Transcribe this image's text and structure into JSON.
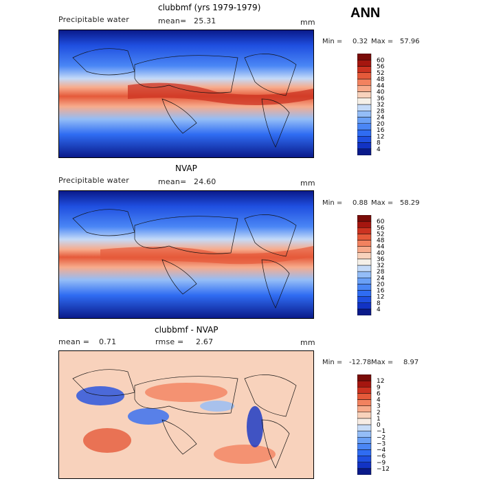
{
  "season": "ANN",
  "chart_data": [
    {
      "type": "heatmap",
      "title": "clubbmf (yrs 1979-1979)",
      "variable": "Precipitable water",
      "mean_label": "mean=",
      "mean": "25.31",
      "units": "mm",
      "min_label": "Min =",
      "min": "0.32",
      "max_label": "Max =",
      "max": "57.96",
      "colorbar": {
        "levels": [
          "4",
          "8",
          "12",
          "16",
          "20",
          "24",
          "28",
          "32",
          "36",
          "40",
          "44",
          "48",
          "52",
          "56",
          "60"
        ],
        "colors": [
          "#0a1a8a",
          "#1233c4",
          "#1f4fe0",
          "#2f6cf2",
          "#4a86f5",
          "#6aa0f6",
          "#94bdf7",
          "#c4daf8",
          "#f5f0e8",
          "#f8d2bc",
          "#f7ab8c",
          "#f2825f",
          "#e55a3a",
          "#cc3321",
          "#a5160f",
          "#7a0c08"
        ]
      }
    },
    {
      "type": "heatmap",
      "title": "NVAP",
      "variable": "Precipitable water",
      "mean_label": "mean=",
      "mean": "24.60",
      "units": "mm",
      "min_label": "Min =",
      "min": "0.88",
      "max_label": "Max =",
      "max": "58.29",
      "colorbar": {
        "levels": [
          "4",
          "8",
          "12",
          "16",
          "20",
          "24",
          "28",
          "32",
          "36",
          "40",
          "44",
          "48",
          "52",
          "56",
          "60"
        ],
        "colors": [
          "#0a1a8a",
          "#1233c4",
          "#1f4fe0",
          "#2f6cf2",
          "#4a86f5",
          "#6aa0f6",
          "#94bdf7",
          "#c4daf8",
          "#f5f0e8",
          "#f8d2bc",
          "#f7ab8c",
          "#f2825f",
          "#e55a3a",
          "#cc3321",
          "#a5160f",
          "#7a0c08"
        ]
      }
    },
    {
      "type": "heatmap",
      "title": "clubbmf - NVAP",
      "mean_label": "mean =",
      "mean": "0.71",
      "rmse_label": "rmse =",
      "rmse": "2.67",
      "units": "mm",
      "min_label": "Min =",
      "min": "-12.78",
      "max_label": "Max =",
      "max": "8.97",
      "colorbar": {
        "levels": [
          "−12",
          "−9",
          "−6",
          "−4",
          "−3",
          "−2",
          "−1",
          "0",
          "1",
          "2",
          "3",
          "4",
          "6",
          "9",
          "12"
        ],
        "colors": [
          "#0a1a8a",
          "#1233c4",
          "#1f4fe0",
          "#2f6cf2",
          "#4a86f5",
          "#6aa0f6",
          "#94bdf7",
          "#c8dcf7",
          "#f7ece4",
          "#f8d2bc",
          "#f7ab8c",
          "#f2825f",
          "#e55a3a",
          "#cc3321",
          "#a5160f",
          "#7a0c08"
        ]
      }
    }
  ]
}
